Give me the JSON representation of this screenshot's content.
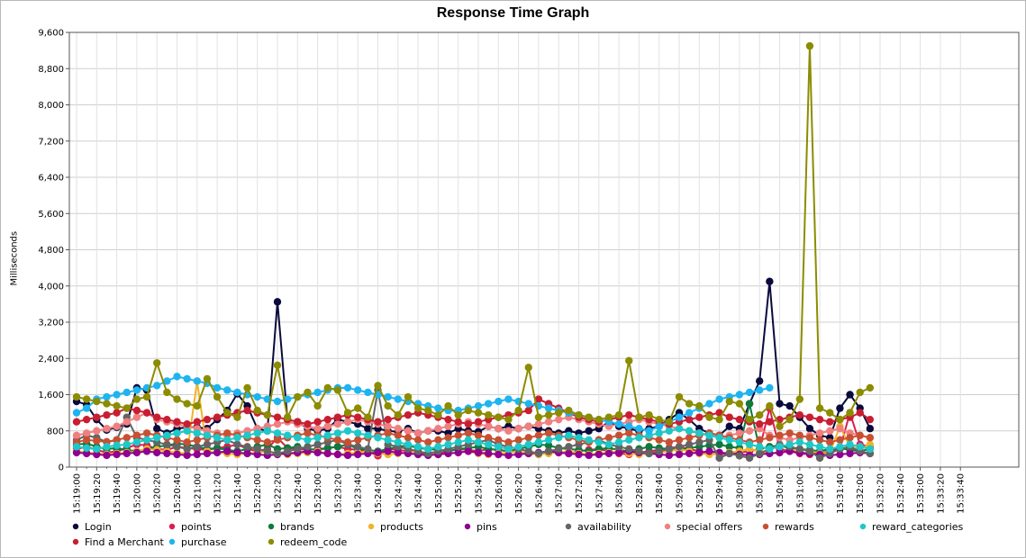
{
  "window": {
    "title": "Response Time Graph"
  },
  "chart_data": {
    "type": "line",
    "title": "Response Time Graph",
    "xlabel": "",
    "ylabel": "Milliseconds",
    "ylim": [
      0,
      9600
    ],
    "yticks": [
      0,
      800,
      1600,
      2400,
      3200,
      4000,
      4800,
      5600,
      6400,
      7200,
      8000,
      8800,
      9600
    ],
    "ytick_labels": [
      "0",
      "800",
      "1,600",
      "2,400",
      "3,200",
      "4,000",
      "4,800",
      "5,600",
      "6,400",
      "7,200",
      "8,000",
      "8,800",
      "9,600"
    ],
    "xtick_labels": [
      "15:19:00",
      "15:19:20",
      "15:19:40",
      "15:20:00",
      "15:20:20",
      "15:20:40",
      "15:21:00",
      "15:21:20",
      "15:21:40",
      "15:22:00",
      "15:22:20",
      "15:22:40",
      "15:23:00",
      "15:23:20",
      "15:23:40",
      "15:24:00",
      "15:24:20",
      "15:24:40",
      "15:25:00",
      "15:25:20",
      "15:25:40",
      "15:26:00",
      "15:26:20",
      "15:26:40",
      "15:27:00",
      "15:27:20",
      "15:27:40",
      "15:28:00",
      "15:28:20",
      "15:28:40",
      "15:29:00",
      "15:29:20",
      "15:29:40",
      "15:30:00",
      "15:30:20",
      "15:30:40",
      "15:31:00",
      "15:31:20",
      "15:31:40",
      "15:32:00",
      "15:32:20",
      "15:32:40",
      "15:33:00",
      "15:33:20",
      "15:33:40"
    ],
    "x_start": "15:19:00",
    "x_interval_seconds": 10,
    "grid": true,
    "legend": "bottom",
    "series": [
      {
        "name": "Login",
        "color": "#0a0a3c",
        "values": [
          1450,
          1380,
          1050,
          820,
          880,
          950,
          1750,
          1700,
          850,
          750,
          850,
          880,
          880,
          850,
          1050,
          1250,
          1620,
          1350,
          850,
          800,
          3650,
          1050,
          1000,
          850,
          800,
          850,
          1050,
          1000,
          950,
          850,
          850,
          800,
          780,
          850,
          750,
          800,
          800,
          750,
          850,
          800,
          780,
          900,
          850,
          900,
          850,
          900,
          850,
          800,
          750,
          800,
          750,
          800,
          850,
          1000,
          900,
          850,
          800,
          850,
          900,
          1050,
          1200,
          1050,
          850,
          750,
          700,
          900,
          850,
          1400,
          1900,
          4100,
          1400,
          1350,
          1100,
          850,
          700,
          650,
          1300,
          1600,
          1300,
          850
        ]
      },
      {
        "name": "points",
        "color": "#dc1e50",
        "values": [
          400,
          450,
          380,
          320,
          350,
          420,
          500,
          480,
          400,
          380,
          450,
          420,
          400,
          380,
          420,
          450,
          500,
          400,
          350,
          400,
          650,
          420,
          400,
          380,
          400,
          420,
          450,
          400,
          380,
          350,
          250,
          400,
          380,
          350,
          320,
          280,
          300,
          350,
          400,
          380,
          350,
          400,
          380,
          350,
          320,
          300,
          280,
          350,
          320,
          300,
          350,
          380,
          400,
          350,
          300,
          280,
          320,
          350,
          380,
          420,
          450,
          400,
          350,
          300,
          280,
          300,
          320,
          350,
          400,
          1300,
          400,
          350,
          300,
          280,
          300,
          350,
          400,
          1200,
          500,
          450
        ]
      },
      {
        "name": "brands",
        "color": "#0e7a3c",
        "values": [
          500,
          520,
          450,
          400,
          420,
          380,
          350,
          400,
          450,
          480,
          520,
          500,
          450,
          400,
          420,
          380,
          350,
          400,
          450,
          500,
          400,
          420,
          450,
          400,
          380,
          420,
          450,
          500,
          400,
          380,
          350,
          400,
          450,
          480,
          420,
          400,
          380,
          350,
          400,
          420,
          450,
          400,
          380,
          350,
          400,
          450,
          500,
          480,
          420,
          400,
          380,
          350,
          400,
          420,
          380,
          350,
          400,
          450,
          420,
          400,
          380,
          420,
          450,
          480,
          500,
          450,
          420,
          1400,
          400,
          450,
          480,
          420,
          400,
          380,
          350,
          400,
          420,
          380,
          350,
          400
        ]
      },
      {
        "name": "products",
        "color": "#f0b428",
        "values": [
          350,
          320,
          300,
          280,
          300,
          320,
          350,
          400,
          380,
          350,
          320,
          300,
          1900,
          350,
          320,
          300,
          280,
          300,
          320,
          350,
          300,
          280,
          300,
          320,
          350,
          300,
          280,
          300,
          320,
          350,
          300,
          280,
          300,
          320,
          350,
          300,
          280,
          300,
          320,
          350,
          300,
          280,
          300,
          320,
          350,
          300,
          280,
          300,
          320,
          350,
          300,
          280,
          300,
          320,
          350,
          300,
          280,
          300,
          320,
          350,
          400,
          350,
          300,
          280,
          300,
          320,
          350,
          400,
          350,
          300,
          320,
          350,
          400,
          350,
          300,
          320,
          900,
          450,
          400,
          500
        ]
      },
      {
        "name": "pins",
        "color": "#900090",
        "values": [
          320,
          300,
          280,
          260,
          280,
          300,
          320,
          350,
          320,
          300,
          280,
          260,
          280,
          300,
          320,
          350,
          320,
          300,
          280,
          260,
          280,
          300,
          320,
          350,
          320,
          300,
          280,
          260,
          280,
          300,
          320,
          350,
          320,
          300,
          280,
          260,
          280,
          300,
          320,
          350,
          320,
          300,
          280,
          260,
          280,
          300,
          320,
          350,
          320,
          300,
          280,
          260,
          280,
          300,
          320,
          350,
          320,
          300,
          280,
          260,
          280,
          300,
          320,
          350,
          320,
          300,
          280,
          260,
          280,
          300,
          320,
          350,
          320,
          300,
          280,
          260,
          280,
          300,
          320,
          300
        ]
      },
      {
        "name": "availability",
        "color": "#646464",
        "values": [
          600,
          700,
          650,
          550,
          600,
          1100,
          650,
          600,
          550,
          500,
          450,
          400,
          450,
          500,
          550,
          600,
          500,
          450,
          400,
          350,
          300,
          350,
          400,
          450,
          500,
          550,
          600,
          500,
          450,
          400,
          1700,
          500,
          450,
          400,
          350,
          300,
          350,
          400,
          450,
          500,
          550,
          600,
          500,
          450,
          400,
          350,
          300,
          350,
          400,
          450,
          500,
          550,
          600,
          500,
          450,
          400,
          350,
          300,
          350,
          400,
          450,
          500,
          550,
          600,
          200,
          300,
          250,
          200,
          300,
          400,
          500,
          450,
          400,
          350,
          200,
          300,
          400,
          450,
          350,
          300
        ]
      },
      {
        "name": "special offers",
        "color": "#f08080",
        "values": [
          700,
          750,
          800,
          850,
          900,
          1000,
          1100,
          1200,
          1050,
          1000,
          950,
          900,
          850,
          800,
          750,
          700,
          750,
          800,
          850,
          900,
          950,
          1000,
          950,
          900,
          850,
          900,
          950,
          1000,
          1050,
          1000,
          950,
          900,
          850,
          800,
          750,
          800,
          850,
          900,
          950,
          1000,
          950,
          900,
          850,
          800,
          850,
          900,
          950,
          1000,
          1050,
          1100,
          1050,
          1000,
          950,
          900,
          950,
          1000,
          1050,
          1000,
          950,
          900,
          850,
          800,
          750,
          700,
          650,
          700,
          750,
          800,
          850,
          700,
          650,
          600,
          650,
          700,
          750,
          800,
          850,
          750,
          700,
          650
        ]
      },
      {
        "name": "rewards",
        "color": "#c85032",
        "values": [
          550,
          600,
          580,
          560,
          600,
          650,
          700,
          750,
          700,
          650,
          600,
          550,
          600,
          650,
          700,
          750,
          700,
          650,
          600,
          550,
          600,
          650,
          700,
          750,
          700,
          650,
          600,
          550,
          600,
          650,
          700,
          750,
          700,
          650,
          600,
          550,
          600,
          650,
          700,
          750,
          700,
          650,
          600,
          550,
          600,
          650,
          700,
          750,
          700,
          650,
          600,
          550,
          600,
          650,
          700,
          750,
          700,
          650,
          600,
          550,
          600,
          650,
          700,
          750,
          700,
          650,
          600,
          550,
          600,
          650,
          700,
          750,
          700,
          650,
          600,
          550,
          600,
          650,
          700,
          650
        ]
      },
      {
        "name": "reward_categories",
        "color": "#1ec8c8",
        "values": [
          450,
          420,
          400,
          450,
          480,
          500,
          550,
          600,
          650,
          700,
          750,
          800,
          750,
          700,
          650,
          600,
          650,
          700,
          750,
          800,
          750,
          700,
          650,
          600,
          650,
          700,
          750,
          800,
          750,
          700,
          650,
          600,
          550,
          500,
          450,
          400,
          450,
          500,
          550,
          600,
          550,
          500,
          450,
          400,
          450,
          500,
          550,
          600,
          650,
          700,
          650,
          600,
          550,
          500,
          550,
          600,
          650,
          700,
          750,
          800,
          850,
          800,
          750,
          700,
          650,
          600,
          550,
          500,
          450,
          400,
          450,
          500,
          550,
          500,
          450,
          400,
          450,
          500,
          450,
          400
        ]
      },
      {
        "name": "Find a Merchant",
        "color": "#c81e32",
        "values": [
          1000,
          1050,
          1100,
          1150,
          1200,
          1300,
          1250,
          1200,
          1100,
          1050,
          1000,
          950,
          1000,
          1050,
          1100,
          1150,
          1200,
          1250,
          1200,
          1150,
          1100,
          1050,
          1000,
          950,
          1000,
          1050,
          1100,
          1150,
          1100,
          1050,
          1000,
          1050,
          1100,
          1150,
          1200,
          1150,
          1100,
          1050,
          1000,
          950,
          1000,
          1050,
          1100,
          1150,
          1200,
          1250,
          1500,
          1400,
          1300,
          1200,
          1100,
          1050,
          1000,
          1050,
          1100,
          1150,
          1100,
          1050,
          1000,
          950,
          1000,
          1050,
          1100,
          1150,
          1200,
          1100,
          1050,
          1000,
          950,
          1000,
          1050,
          1100,
          1150,
          1100,
          1050,
          1000,
          1050,
          1100,
          1200,
          1050
        ]
      },
      {
        "name": "purchase",
        "color": "#1eb4f0",
        "values": [
          1200,
          1300,
          1500,
          1550,
          1600,
          1650,
          1700,
          1750,
          1800,
          1900,
          2000,
          1950,
          1900,
          1850,
          1750,
          1700,
          1650,
          1600,
          1550,
          1500,
          1450,
          1500,
          1550,
          1600,
          1650,
          1700,
          1750,
          1750,
          1700,
          1650,
          1600,
          1550,
          1500,
          1450,
          1400,
          1350,
          1300,
          1250,
          1250,
          1300,
          1350,
          1400,
          1450,
          1500,
          1450,
          1400,
          1350,
          1300,
          1250,
          1200,
          1150,
          1100,
          1050,
          1000,
          950,
          900,
          850,
          800,
          900,
          1000,
          1100,
          1200,
          1300,
          1400,
          1500,
          1550,
          1600,
          1650,
          1700,
          1750
        ]
      },
      {
        "name": "redeem_code",
        "color": "#8c8c00",
        "values": [
          1550,
          1500,
          1450,
          1400,
          1350,
          1300,
          1500,
          1550,
          2300,
          1650,
          1500,
          1400,
          1350,
          1950,
          1550,
          1200,
          1100,
          1750,
          1250,
          1150,
          2250,
          1100,
          1550,
          1650,
          1350,
          1750,
          1700,
          1200,
          1300,
          1100,
          1800,
          1350,
          1150,
          1550,
          1300,
          1250,
          1150,
          1350,
          1150,
          1250,
          1200,
          1150,
          1100,
          1050,
          1250,
          2200,
          1100,
          1150,
          1200,
          1250,
          1150,
          1100,
          1050,
          1100,
          1150,
          2350,
          1100,
          1150,
          1050,
          1000,
          1550,
          1400,
          1350,
          1100,
          1050,
          1450,
          1400,
          1050,
          1150,
          1350,
          900,
          1050,
          1500,
          9300,
          1300,
          1200,
          1050,
          1200,
          1650,
          1750
        ]
      }
    ]
  },
  "legend_labels": [
    "Login",
    "points",
    "brands",
    "products",
    "pins",
    "availability",
    "special offers",
    "rewards",
    "reward_categories",
    "Find a Merchant",
    "purchase",
    "redeem_code"
  ]
}
